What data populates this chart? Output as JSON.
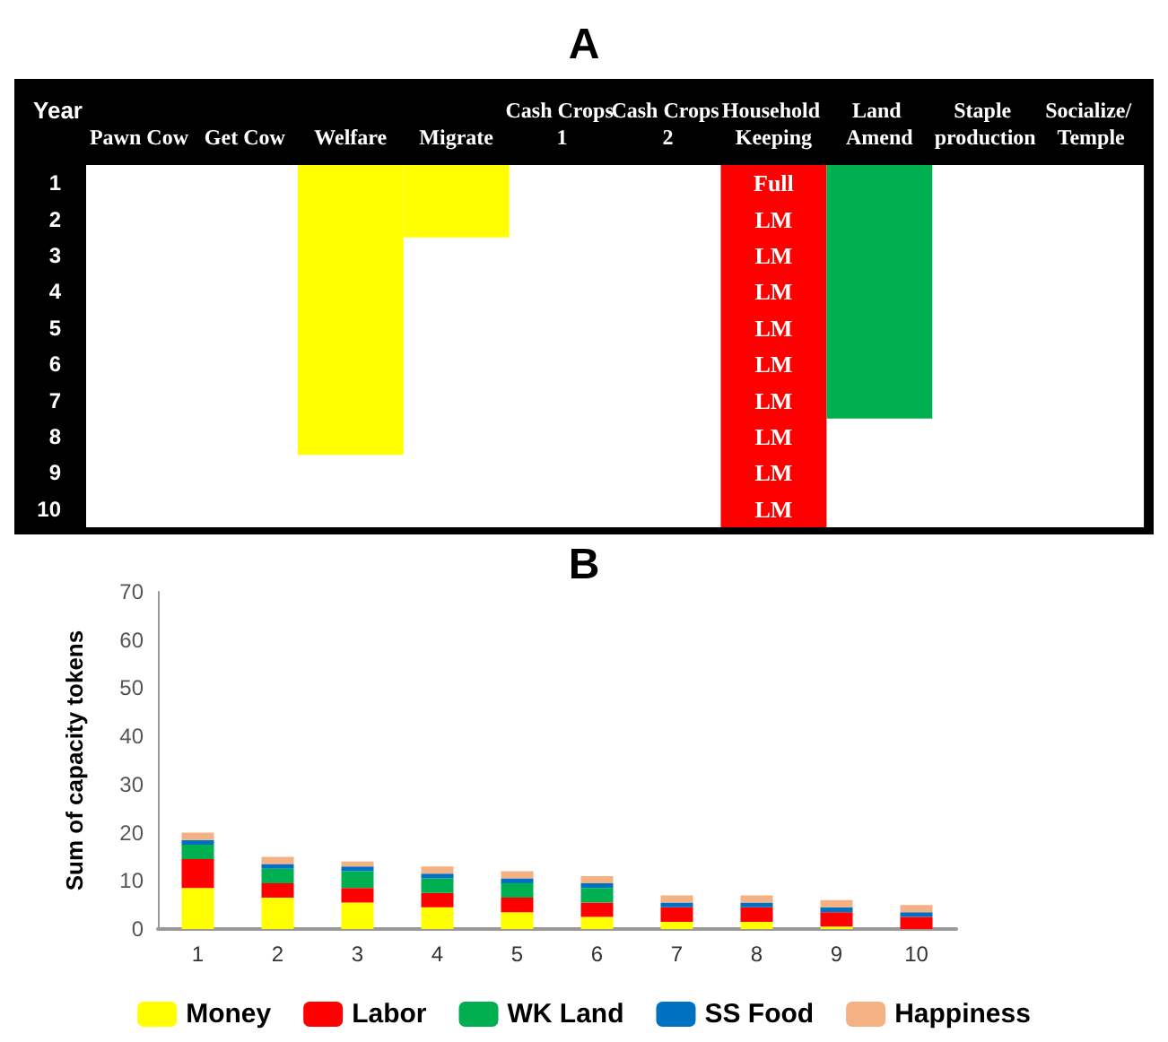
{
  "chart_data": [
    {
      "type": "bar",
      "title": "A",
      "ylabel": "Year",
      "categories": [
        "Pawn Cow",
        "Get Cow",
        "Welfare",
        "Migrate",
        "Cash Crops 1",
        "Cash Crops 2",
        "Household Keeping",
        "Land Amend",
        "Staple production",
        "Socialize/ Temple"
      ],
      "values": [
        null,
        null,
        8,
        2,
        null,
        null,
        10,
        7,
        null,
        null
      ],
      "base": [
        null,
        null,
        0.5,
        0.5,
        null,
        null,
        0.5,
        0.5,
        null,
        null
      ],
      "colors": [
        null,
        null,
        "#ffff00",
        "#ffff00",
        null,
        null,
        "#ff0000",
        "#00b050",
        null,
        null
      ],
      "ylim": [
        10.5,
        0.5
      ],
      "yticks": [
        1,
        2,
        3,
        4,
        5,
        6,
        7,
        8,
        9,
        10
      ],
      "annotations": [
        "Full",
        "LM",
        "LM",
        "LM",
        "LM",
        "LM",
        "LM",
        "LM",
        "LM",
        "LM"
      ]
    },
    {
      "type": "bar",
      "title": "B",
      "ylabel": "Sum of capacity tokens",
      "stacked": true,
      "legend": "bottom",
      "categories": [
        "1",
        "2",
        "3",
        "4",
        "5",
        "6",
        "7",
        "8",
        "9",
        "10"
      ],
      "ylim": [
        0,
        70
      ],
      "yticks": [
        0,
        10,
        20,
        30,
        40,
        50,
        60,
        70
      ],
      "series": [
        {
          "name": "Money",
          "color": "#ffff00",
          "values": [
            8.5,
            6.5,
            5.5,
            4.5,
            3.5,
            2.5,
            1.5,
            1.5,
            0.5,
            0
          ]
        },
        {
          "name": "Labor",
          "color": "#ff0000",
          "values": [
            6,
            3,
            3,
            3,
            3,
            3,
            3,
            3,
            3,
            2.5
          ]
        },
        {
          "name": "WK Land",
          "color": "#00b050",
          "values": [
            3,
            3,
            3.5,
            3,
            3,
            3,
            0,
            0,
            0,
            0
          ]
        },
        {
          "name": "SS Food",
          "color": "#0070c0",
          "values": [
            1,
            1,
            1,
            1,
            1,
            1,
            1,
            1,
            1,
            1
          ]
        },
        {
          "name": "Happiness",
          "color": "#f4b183",
          "values": [
            1.5,
            1.5,
            1,
            1.5,
            1.5,
            1.5,
            1.5,
            1.5,
            1.5,
            1.5
          ]
        }
      ]
    }
  ]
}
